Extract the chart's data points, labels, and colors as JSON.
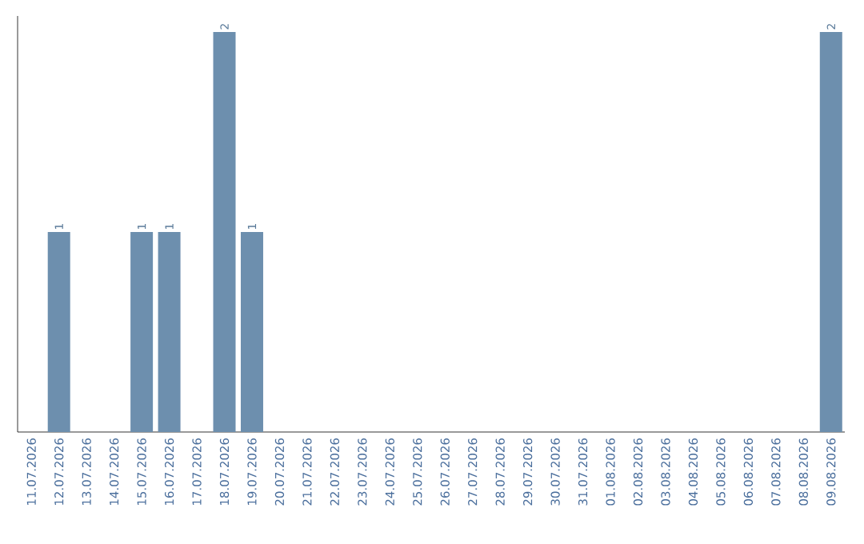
{
  "chart_data": {
    "type": "bar",
    "categories": [
      "11.07.2026",
      "12.07.2026",
      "13.07.2026",
      "14.07.2026",
      "15.07.2026",
      "16.07.2026",
      "17.07.2026",
      "18.07.2026",
      "19.07.2026",
      "20.07.2026",
      "21.07.2026",
      "22.07.2026",
      "23.07.2026",
      "24.07.2026",
      "25.07.2026",
      "26.07.2026",
      "27.07.2026",
      "28.07.2026",
      "29.07.2026",
      "30.07.2026",
      "31.07.2026",
      "01.08.2026",
      "02.08.2026",
      "03.08.2026",
      "04.08.2026",
      "05.08.2026",
      "06.08.2026",
      "07.08.2026",
      "08.08.2026",
      "09.08.2026"
    ],
    "values": [
      0,
      1,
      0,
      0,
      1,
      1,
      0,
      2,
      1,
      0,
      0,
      0,
      0,
      0,
      0,
      0,
      0,
      0,
      0,
      0,
      0,
      0,
      0,
      0,
      0,
      0,
      0,
      0,
      0,
      2
    ],
    "value_labels": [
      null,
      "1",
      null,
      null,
      "1",
      "1",
      null,
      "2",
      "1",
      null,
      null,
      null,
      null,
      null,
      null,
      null,
      null,
      null,
      null,
      null,
      null,
      null,
      null,
      null,
      null,
      null,
      null,
      null,
      null,
      "2"
    ],
    "color": "#6d8fae",
    "ylim": [
      0,
      2.08
    ]
  }
}
